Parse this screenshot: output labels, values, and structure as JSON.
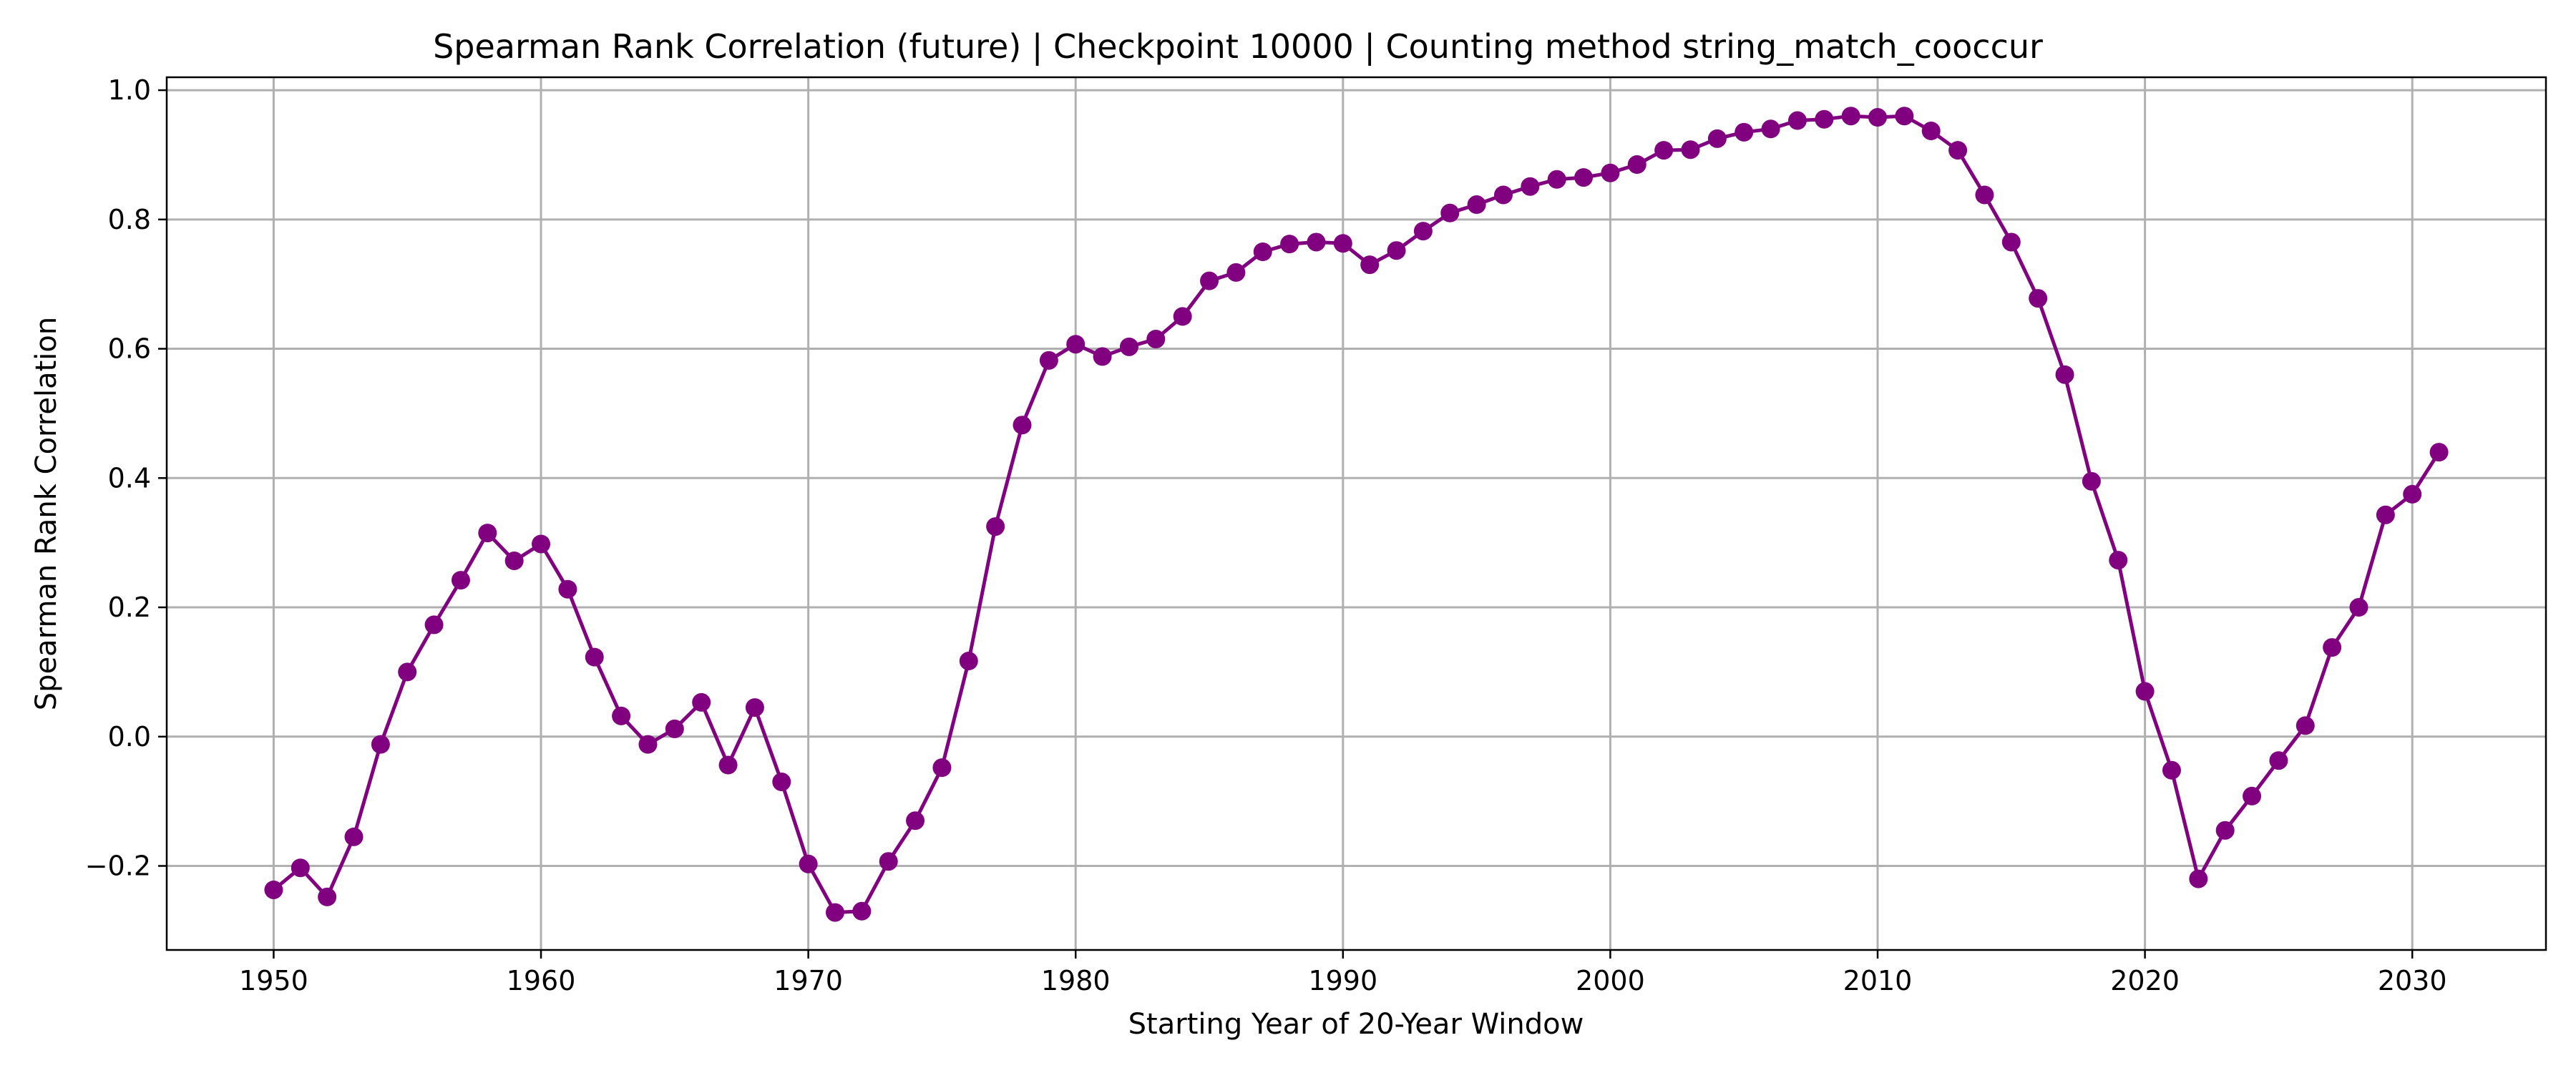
{
  "chart_data": {
    "type": "line",
    "title": "Spearman Rank Correlation (future) | Checkpoint 10000 | Counting method string_match_cooccur",
    "xlabel": "Starting Year of 20-Year Window",
    "ylabel": "Spearman Rank Correlation",
    "xlim": [
      1946,
      2035
    ],
    "ylim": [
      -0.33,
      1.02
    ],
    "xticks": [
      1950,
      1960,
      1970,
      1980,
      1990,
      2000,
      2010,
      2020,
      2030
    ],
    "yticks": [
      -0.2,
      0.0,
      0.2,
      0.4,
      0.6,
      0.8,
      1.0
    ],
    "ytick_labels": [
      "−0.2",
      "0.0",
      "0.2",
      "0.4",
      "0.6",
      "0.8",
      "1.0"
    ],
    "grid": true,
    "color": "#800080",
    "marker": "circle",
    "x": [
      1950,
      1951,
      1952,
      1953,
      1954,
      1955,
      1956,
      1957,
      1958,
      1959,
      1960,
      1961,
      1962,
      1963,
      1964,
      1965,
      1966,
      1967,
      1968,
      1969,
      1970,
      1971,
      1972,
      1973,
      1974,
      1975,
      1976,
      1977,
      1978,
      1979,
      1980,
      1981,
      1982,
      1983,
      1984,
      1985,
      1986,
      1987,
      1988,
      1989,
      1990,
      1991,
      1992,
      1993,
      1994,
      1995,
      1996,
      1997,
      1998,
      1999,
      2000,
      2001,
      2002,
      2003,
      2004,
      2005,
      2006,
      2007,
      2008,
      2009,
      2010,
      2011,
      2012,
      2013,
      2014,
      2015,
      2016,
      2017,
      2018,
      2019,
      2020,
      2021,
      2022,
      2023,
      2024,
      2025,
      2026,
      2027,
      2028,
      2029,
      2030,
      2031
    ],
    "series": [
      {
        "values": [
          -0.237,
          -0.203,
          -0.248,
          -0.155,
          -0.012,
          0.1,
          0.173,
          0.242,
          0.315,
          0.272,
          0.298,
          0.228,
          0.123,
          0.032,
          -0.012,
          0.012,
          0.053,
          -0.044,
          0.045,
          -0.07,
          -0.197,
          -0.272,
          -0.27,
          -0.193,
          -0.13,
          -0.048,
          0.117,
          0.325,
          0.482,
          0.582,
          0.607,
          0.588,
          0.603,
          0.615,
          0.65,
          0.705,
          0.718,
          0.75,
          0.762,
          0.765,
          0.763,
          0.73,
          0.752,
          0.782,
          0.81,
          0.823,
          0.838,
          0.851,
          0.862,
          0.865,
          0.872,
          0.885,
          0.907,
          0.908,
          0.925,
          0.935,
          0.94,
          0.953,
          0.955,
          0.96,
          0.958,
          0.96,
          0.937,
          0.907,
          0.838,
          0.765,
          0.678,
          0.56,
          0.395,
          0.273,
          0.07,
          -0.052,
          -0.22,
          -0.145,
          -0.092,
          -0.037,
          0.017,
          0.138,
          0.2,
          0.343,
          0.375,
          0.44
        ]
      }
    ]
  }
}
